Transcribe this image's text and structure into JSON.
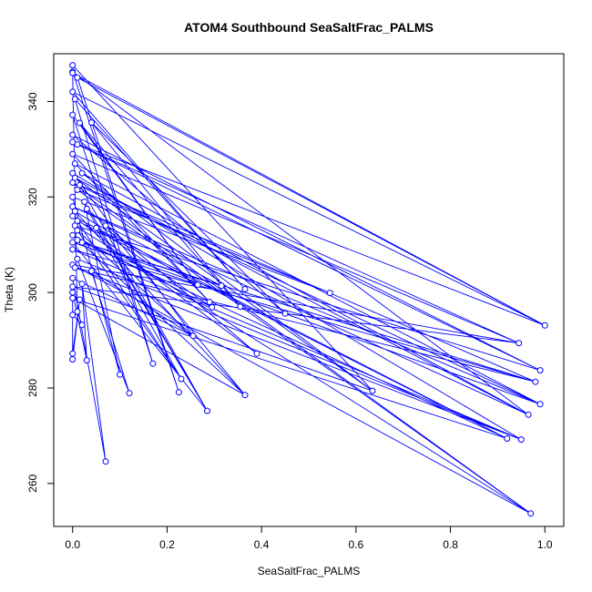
{
  "chart_data": {
    "type": "scatter",
    "title": "ATOM4 Southbound SeaSaltFrac_PALMS",
    "xlabel": "SeaSaltFrac_PALMS",
    "ylabel": "Theta (K)",
    "xlim": [
      -0.04,
      1.04
    ],
    "ylim": [
      251,
      350
    ],
    "xticks": [
      0.0,
      0.2,
      0.4,
      0.6,
      0.8,
      1.0
    ],
    "xtick_labels": [
      "0.0",
      "0.2",
      "0.4",
      "0.6",
      "0.8",
      "1.0"
    ],
    "yticks": [
      260,
      280,
      300,
      320,
      340
    ],
    "ytick_labels": [
      "260",
      "280",
      "300",
      "320",
      "340"
    ],
    "grid": false,
    "legend": "none",
    "series_color": "#0000ff",
    "mode": "lines+markers",
    "points": [
      [
        0.0,
        347.6
      ],
      [
        0.0,
        346.2
      ],
      [
        0.01,
        345.0
      ],
      [
        0.0,
        342.0
      ],
      [
        0.005,
        340.5
      ],
      [
        0.0,
        337.2
      ],
      [
        0.015,
        335.5
      ],
      [
        0.04,
        335.6
      ],
      [
        0.0,
        333.0
      ],
      [
        0.01,
        331.0
      ],
      [
        0.0,
        329.0
      ],
      [
        0.005,
        327.0
      ],
      [
        0.02,
        325.0
      ],
      [
        0.0,
        323.0
      ],
      [
        0.01,
        321.5
      ],
      [
        0.0,
        320.0
      ],
      [
        0.025,
        319.0
      ],
      [
        0.03,
        317.5
      ],
      [
        0.0,
        316.0
      ],
      [
        0.01,
        315.0
      ],
      [
        0.05,
        313.5
      ],
      [
        0.0,
        312.0
      ],
      [
        0.07,
        314.0
      ],
      [
        0.02,
        310.5
      ],
      [
        0.0,
        309.0
      ],
      [
        0.01,
        307.0
      ],
      [
        0.04,
        304.5
      ],
      [
        0.0,
        303.0
      ],
      [
        0.02,
        301.8
      ],
      [
        0.0,
        300.0
      ],
      [
        0.015,
        298.5
      ],
      [
        0.0,
        295.3
      ],
      [
        0.01,
        296.0
      ],
      [
        0.02,
        293.2
      ],
      [
        0.0,
        287.2
      ],
      [
        0.0,
        286.0
      ],
      [
        0.03,
        285.8
      ],
      [
        0.07,
        264.6
      ],
      [
        0.1,
        282.8
      ],
      [
        0.12,
        278.9
      ],
      [
        0.17,
        285.1
      ],
      [
        0.225,
        279.1
      ],
      [
        0.23,
        281.9
      ],
      [
        0.255,
        290.9
      ],
      [
        0.265,
        301.6
      ],
      [
        0.285,
        275.2
      ],
      [
        0.29,
        298.0
      ],
      [
        0.295,
        296.9
      ],
      [
        0.315,
        301.4
      ],
      [
        0.355,
        297.0
      ],
      [
        0.365,
        300.7
      ],
      [
        0.365,
        278.5
      ],
      [
        0.39,
        287.2
      ],
      [
        0.45,
        295.6
      ],
      [
        0.545,
        299.9
      ],
      [
        0.635,
        279.4
      ],
      [
        0.92,
        269.4
      ],
      [
        0.945,
        289.4
      ],
      [
        0.95,
        269.2
      ],
      [
        0.965,
        274.4
      ],
      [
        0.97,
        253.7
      ],
      [
        0.98,
        281.3
      ],
      [
        0.99,
        283.7
      ],
      [
        0.99,
        276.6
      ],
      [
        1.0,
        293.1
      ],
      [
        0.0,
        346.0
      ],
      [
        0.0,
        331.5
      ],
      [
        0.005,
        314.0
      ],
      [
        0.0,
        305.8
      ],
      [
        0.0,
        301.2
      ],
      [
        0.005,
        324.0
      ],
      [
        0.0,
        318.0
      ],
      [
        0.01,
        311.0
      ],
      [
        0.0,
        298.8
      ],
      [
        0.005,
        317.0
      ],
      [
        0.0,
        310.5
      ],
      [
        0.015,
        322.5
      ],
      [
        0.005,
        305.2
      ],
      [
        0.0,
        325.0
      ],
      [
        0.01,
        313.0
      ]
    ],
    "path": [
      0,
      55,
      12,
      59,
      1,
      41,
      2,
      64,
      3,
      50,
      4,
      40,
      5,
      44,
      6,
      49,
      7,
      53,
      8,
      62,
      9,
      57,
      10,
      46,
      11,
      63,
      13,
      60,
      14,
      54,
      15,
      38,
      16,
      45,
      17,
      52,
      18,
      56,
      19,
      42,
      20,
      47,
      21,
      51,
      22,
      48,
      23,
      61,
      24,
      58,
      25,
      39,
      26,
      43,
      27,
      37,
      28,
      36,
      29,
      35,
      30,
      34,
      31,
      33,
      32,
      65,
      64,
      66,
      62,
      67,
      60,
      68,
      57,
      69,
      55,
      70,
      59,
      71,
      63,
      72,
      56,
      73,
      51,
      74,
      44,
      75,
      45,
      76,
      61,
      77,
      58,
      78,
      43,
      79,
      42
    ]
  }
}
